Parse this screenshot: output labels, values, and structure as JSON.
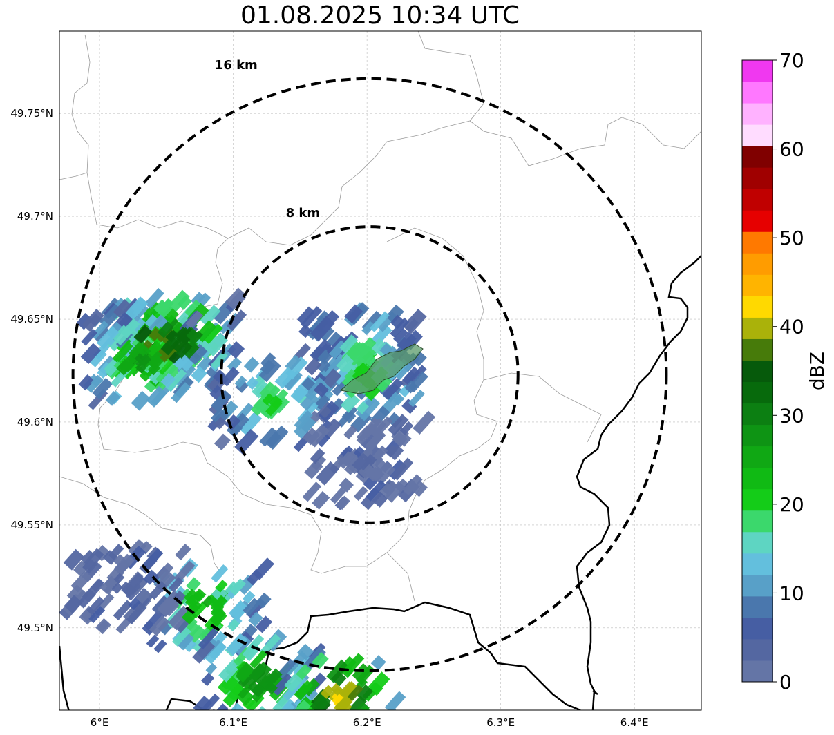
{
  "title": "01.08.2025 10:34 UTC",
  "map": {
    "lon_range": [
      5.97,
      6.45
    ],
    "lat_range": [
      49.46,
      49.79
    ],
    "lon_ticks": [
      {
        "value": 6.0,
        "label": "6°E"
      },
      {
        "value": 6.1,
        "label": "6.1°E"
      },
      {
        "value": 6.2,
        "label": "6.2°E"
      },
      {
        "value": 6.3,
        "label": "6.3°E"
      },
      {
        "value": 6.4,
        "label": "6.4°E"
      }
    ],
    "lat_ticks": [
      {
        "value": 49.75,
        "label": "49.75°N"
      },
      {
        "value": 49.7,
        "label": "49.7°N"
      },
      {
        "value": 49.65,
        "label": "49.65°N"
      },
      {
        "value": 49.6,
        "label": "49.6°N"
      },
      {
        "value": 49.55,
        "label": "49.55°N"
      },
      {
        "value": 49.5,
        "label": "49.5°N"
      }
    ],
    "gridlines": true,
    "range_rings": [
      {
        "radius_km": 16,
        "label": "16 km"
      },
      {
        "radius_km": 8,
        "label": "8 km"
      }
    ],
    "ring_center": {
      "lon": 6.202,
      "lat": 49.623
    }
  },
  "colorbar": {
    "title": "dBZ",
    "min": 0,
    "max": 70,
    "tick_values": [
      0,
      10,
      20,
      30,
      40,
      50,
      60,
      70
    ],
    "tick_labels": [
      "0",
      "10",
      "20",
      "30",
      "40",
      "50",
      "60",
      "70"
    ],
    "colors": [
      "#6475a6",
      "#5467a1",
      "#465ea3",
      "#4a77ad",
      "#58a0c8",
      "#63bfdd",
      "#5ed5c2",
      "#3bd86c",
      "#14cc18",
      "#10ba14",
      "#10a814",
      "#0e9414",
      "#0c7f12",
      "#076a0c",
      "#065a0b",
      "#477b0a",
      "#aab20a",
      "#ffd900",
      "#ffb400",
      "#ff9c00",
      "#ff7900",
      "#e60000",
      "#c00000",
      "#a00000",
      "#800000",
      "#ffdcff",
      "#ffb2ff",
      "#ff78ff",
      "#f038f0"
    ]
  },
  "chart_data": {
    "type": "heatmap",
    "title": "01.08.2025 10:34 UTC",
    "variable": "dBZ",
    "value_range": [
      0,
      70
    ],
    "cells": [
      {
        "lon": 6.045,
        "lat": 49.637,
        "dbz": 40
      },
      {
        "lon": 6.06,
        "lat": 49.64,
        "dbz": 34
      },
      {
        "lon": 6.03,
        "lat": 49.63,
        "dbz": 28
      },
      {
        "lon": 6.195,
        "lat": 49.633,
        "dbz": 20
      },
      {
        "lon": 6.2,
        "lat": 49.62,
        "dbz": 22
      },
      {
        "lon": 6.13,
        "lat": 49.61,
        "dbz": 21
      },
      {
        "lon": 6.08,
        "lat": 49.51,
        "dbz": 26
      },
      {
        "lon": 6.12,
        "lat": 49.475,
        "dbz": 30
      },
      {
        "lon": 6.18,
        "lat": 49.465,
        "dbz": 42
      },
      {
        "lon": 6.2,
        "lat": 49.58,
        "dbz": 4
      },
      {
        "lon": 6.02,
        "lat": 49.52,
        "dbz": 5
      }
    ]
  }
}
